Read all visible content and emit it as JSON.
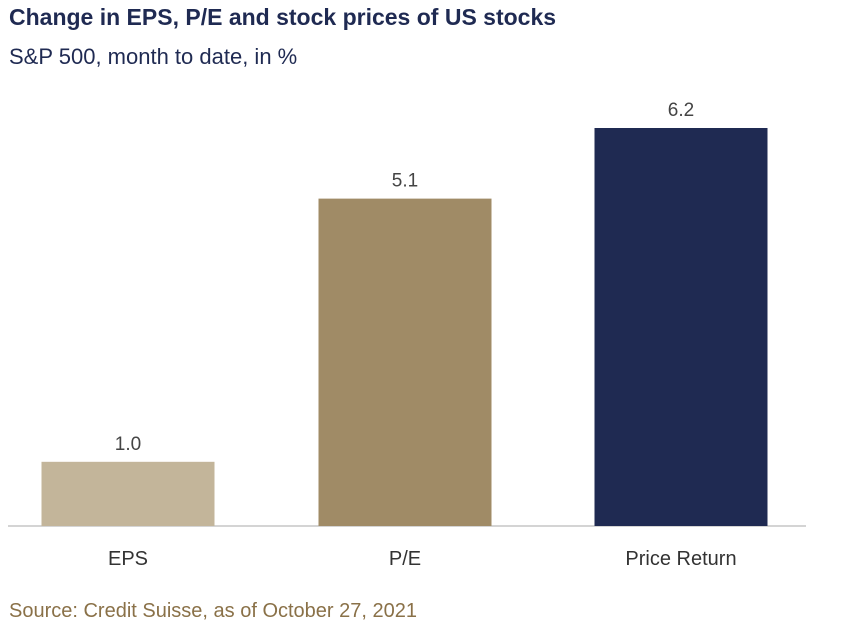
{
  "title": "Change in EPS, P/E and stock prices of US stocks",
  "subtitle": "S&P 500, month to date, in %",
  "source": "Source: Credit Suisse, as of October 27, 2021",
  "chart_data": {
    "type": "bar",
    "categories": [
      "EPS",
      "P/E",
      "Price Return"
    ],
    "values": [
      1.0,
      5.1,
      6.2
    ],
    "value_labels": [
      "1.0",
      "5.1",
      "6.2"
    ],
    "colors": [
      "#c3b59a",
      "#a08b66",
      "#1f2a52"
    ],
    "ylim": [
      0,
      6.2
    ],
    "grid": false,
    "legend": "none",
    "axis_color": "#aaaaaa"
  }
}
